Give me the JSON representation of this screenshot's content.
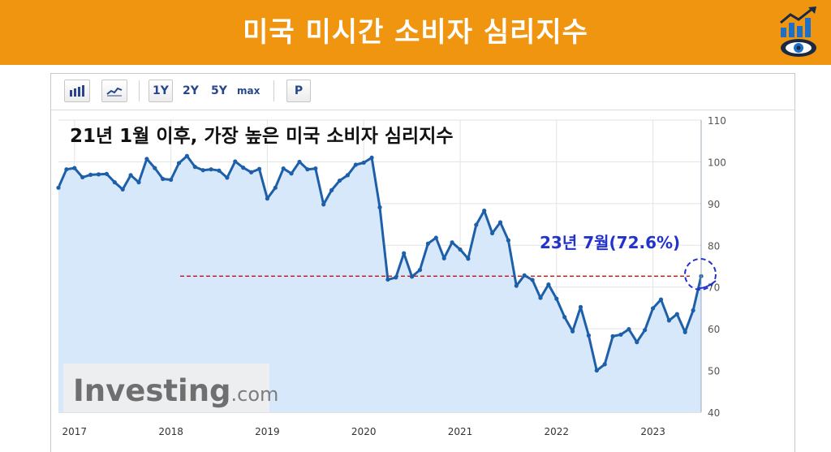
{
  "banner": {
    "title": "미국 미시간 소비자 심리지수"
  },
  "toolbar": {
    "range_1y": "1Y",
    "range_2y": "2Y",
    "range_5y": "5Y",
    "range_max": "max",
    "print": "P"
  },
  "brand": {
    "name": "Investing",
    "suffix": ".com"
  },
  "colors": {
    "banner": "#f0950f",
    "line": "#1d5fa8",
    "fill": "#d8e8fb",
    "annotation": "#2233cc",
    "reference_line": "#cc1111",
    "headline": "#111111"
  },
  "chart_data": {
    "type": "area",
    "title": "21년 1월 이후, 가장 높은 미국 소비자 심리지수",
    "annotation": "23년 7월(72.6%)",
    "xlabel": "",
    "ylabel": "",
    "x_ticks": [
      "2017",
      "2018",
      "2019",
      "2020",
      "2021",
      "2022",
      "2023"
    ],
    "y_ticks": [
      40,
      50,
      60,
      70,
      80,
      90,
      100,
      110
    ],
    "xlim": [
      "2016-11",
      "2023-07"
    ],
    "ylim": [
      40,
      110
    ],
    "grid": true,
    "reference_line": 72.6,
    "series": [
      {
        "x": [
          "2016-11",
          "2016-12",
          "2017-01",
          "2017-02",
          "2017-03",
          "2017-04",
          "2017-05",
          "2017-06",
          "2017-07",
          "2017-08",
          "2017-09",
          "2017-10",
          "2017-11",
          "2017-12",
          "2018-01",
          "2018-02",
          "2018-03",
          "2018-04",
          "2018-05",
          "2018-06",
          "2018-07",
          "2018-08",
          "2018-09",
          "2018-10",
          "2018-11",
          "2018-12",
          "2019-01",
          "2019-02",
          "2019-03",
          "2019-04",
          "2019-05",
          "2019-06",
          "2019-07",
          "2019-08",
          "2019-09",
          "2019-10",
          "2019-11",
          "2019-12",
          "2020-01",
          "2020-02",
          "2020-03",
          "2020-04",
          "2020-05",
          "2020-06",
          "2020-07",
          "2020-08",
          "2020-09",
          "2020-10",
          "2020-11",
          "2020-12",
          "2021-01",
          "2021-02",
          "2021-03",
          "2021-04",
          "2021-05",
          "2021-06",
          "2021-07",
          "2021-08",
          "2021-09",
          "2021-10",
          "2021-11",
          "2021-12",
          "2022-01",
          "2022-02",
          "2022-03",
          "2022-04",
          "2022-05",
          "2022-06",
          "2022-07",
          "2022-08",
          "2022-09",
          "2022-10",
          "2022-11",
          "2022-12",
          "2023-01",
          "2023-02",
          "2023-03",
          "2023-04",
          "2023-05",
          "2023-06",
          "2023-07"
        ],
        "values": [
          93.8,
          98.2,
          98.5,
          96.3,
          96.9,
          97.0,
          97.1,
          95.1,
          93.4,
          96.8,
          95.1,
          100.7,
          98.5,
          95.9,
          95.7,
          99.7,
          101.4,
          98.8,
          98.0,
          98.2,
          97.9,
          96.2,
          100.1,
          98.6,
          97.5,
          98.3,
          91.2,
          93.8,
          98.4,
          97.2,
          100.0,
          98.2,
          98.4,
          89.8,
          93.2,
          95.5,
          96.8,
          99.3,
          99.8,
          101.0,
          89.1,
          71.8,
          72.3,
          78.1,
          72.5,
          74.1,
          80.4,
          81.8,
          76.9,
          80.7,
          79.0,
          76.8,
          84.9,
          88.3,
          82.9,
          85.5,
          81.2,
          70.3,
          72.8,
          71.7,
          67.4,
          70.6,
          67.2,
          62.8,
          59.4,
          65.2,
          58.4,
          50.0,
          51.5,
          58.2,
          58.6,
          59.9,
          56.8,
          59.7,
          64.9,
          67.0,
          62.0,
          63.5,
          59.2,
          64.4,
          72.6
        ]
      }
    ]
  }
}
